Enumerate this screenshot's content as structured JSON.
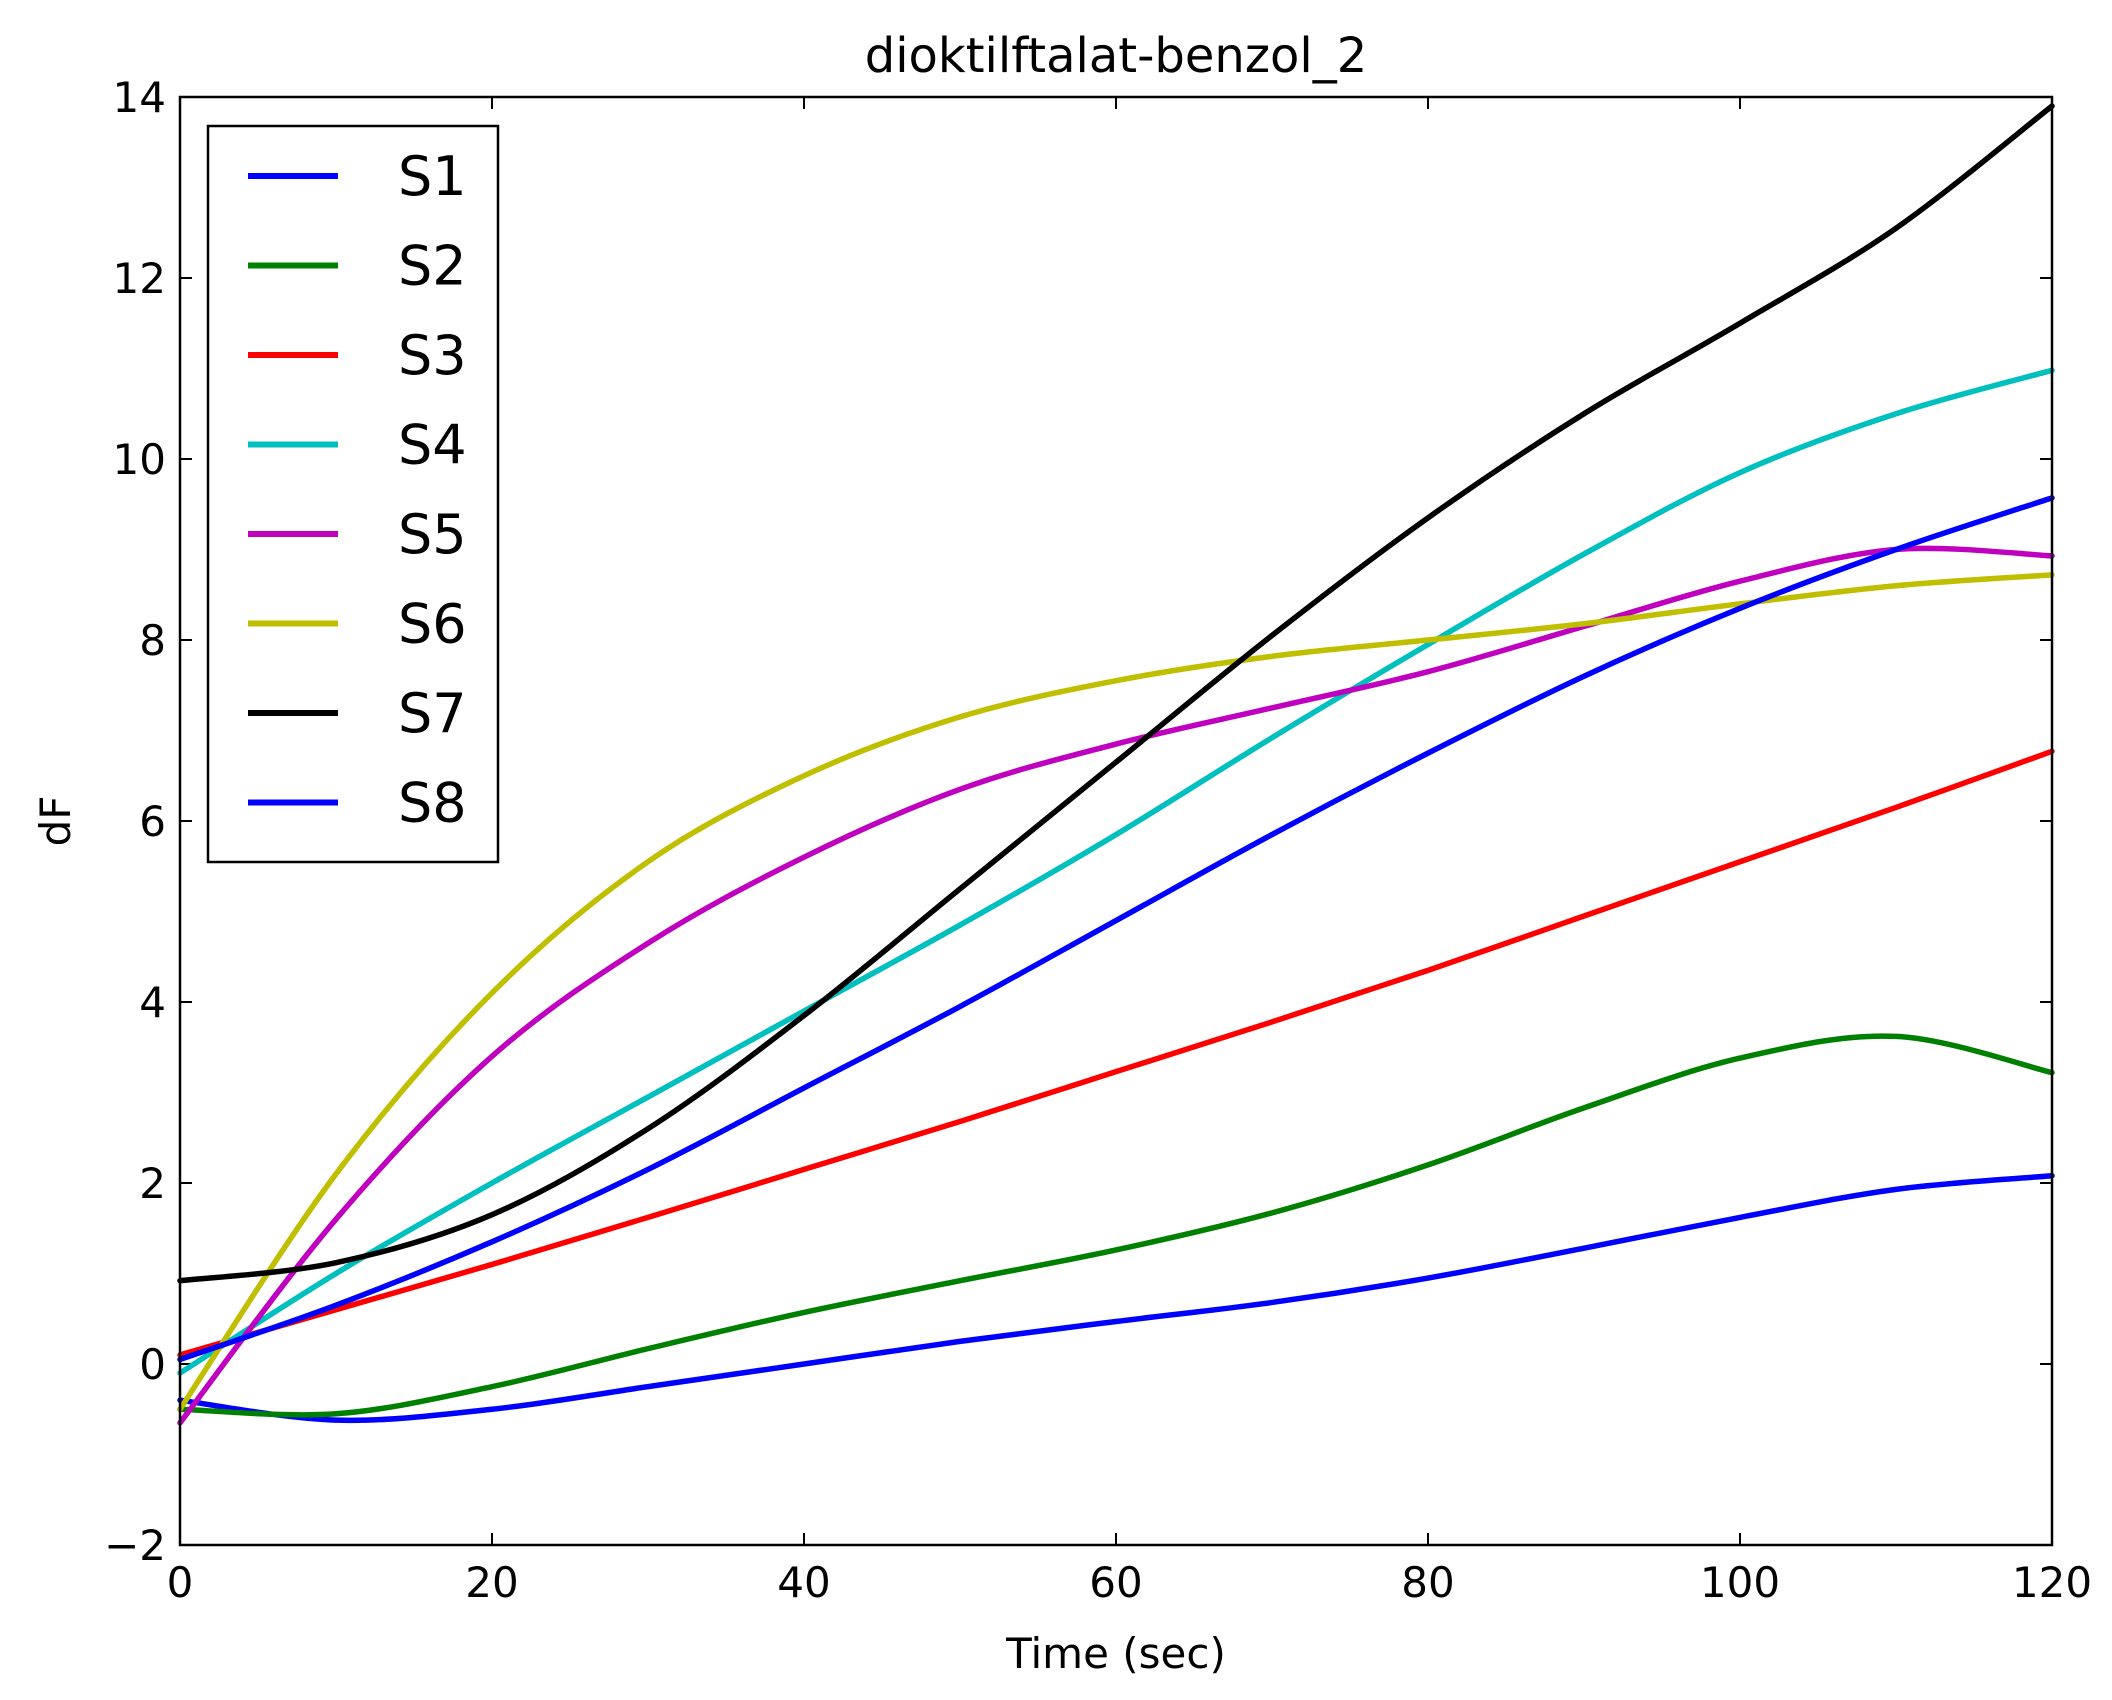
{
  "chart_data": {
    "type": "line",
    "title": "dioktilftalat-benzol_2",
    "xlabel": "Time (sec)",
    "ylabel": "dF",
    "xlim": [
      0,
      120
    ],
    "ylim": [
      -2,
      14
    ],
    "xticks": [
      0,
      20,
      40,
      60,
      80,
      100,
      120
    ],
    "yticks": [
      -2,
      0,
      2,
      4,
      6,
      8,
      10,
      12,
      14
    ],
    "xtick_labels": [
      "0",
      "20",
      "40",
      "60",
      "80",
      "100",
      "120"
    ],
    "ytick_labels": [
      "−2",
      "0",
      "2",
      "4",
      "6",
      "8",
      "10",
      "12",
      "14"
    ],
    "grid": false,
    "legend_position": "upper-left",
    "x": [
      0,
      10,
      20,
      30,
      40,
      50,
      60,
      70,
      80,
      90,
      100,
      110,
      120
    ],
    "series": [
      {
        "name": "S1",
        "color": "#0000ff",
        "values": [
          -0.4,
          -0.62,
          -0.5,
          -0.25,
          0.0,
          0.25,
          0.47,
          0.68,
          0.95,
          1.28,
          1.62,
          1.93,
          2.08
        ]
      },
      {
        "name": "S2",
        "color": "#008000",
        "values": [
          -0.5,
          -0.55,
          -0.25,
          0.17,
          0.57,
          0.92,
          1.26,
          1.67,
          2.2,
          2.83,
          3.38,
          3.62,
          3.22
        ]
      },
      {
        "name": "S3",
        "color": "#ff0000",
        "values": [
          0.1,
          0.6,
          1.1,
          1.62,
          2.15,
          2.68,
          3.23,
          3.78,
          4.35,
          4.95,
          5.55,
          6.15,
          6.77
        ]
      },
      {
        "name": "S4",
        "color": "#00bfbf",
        "values": [
          -0.1,
          1.0,
          2.0,
          2.95,
          3.9,
          4.85,
          5.85,
          6.92,
          7.95,
          8.95,
          9.85,
          10.5,
          10.98
        ]
      },
      {
        "name": "S5",
        "color": "#bf00bf",
        "values": [
          -0.65,
          1.6,
          3.4,
          4.65,
          5.6,
          6.35,
          6.85,
          7.25,
          7.65,
          8.15,
          8.65,
          9.0,
          8.93
        ]
      },
      {
        "name": "S6",
        "color": "#bfbf00",
        "values": [
          -0.5,
          2.1,
          4.1,
          5.55,
          6.5,
          7.15,
          7.55,
          7.82,
          8.0,
          8.18,
          8.4,
          8.6,
          8.72
        ]
      },
      {
        "name": "S7",
        "color": "#000000",
        "values": [
          0.92,
          1.12,
          1.65,
          2.6,
          3.85,
          5.25,
          6.65,
          8.05,
          9.35,
          10.5,
          11.5,
          12.55,
          13.9
        ]
      },
      {
        "name": "S8",
        "color": "#0000ff",
        "values": [
          0.05,
          0.65,
          1.35,
          2.15,
          3.05,
          3.95,
          4.9,
          5.85,
          6.75,
          7.6,
          8.35,
          9.0,
          9.57
        ]
      }
    ]
  }
}
